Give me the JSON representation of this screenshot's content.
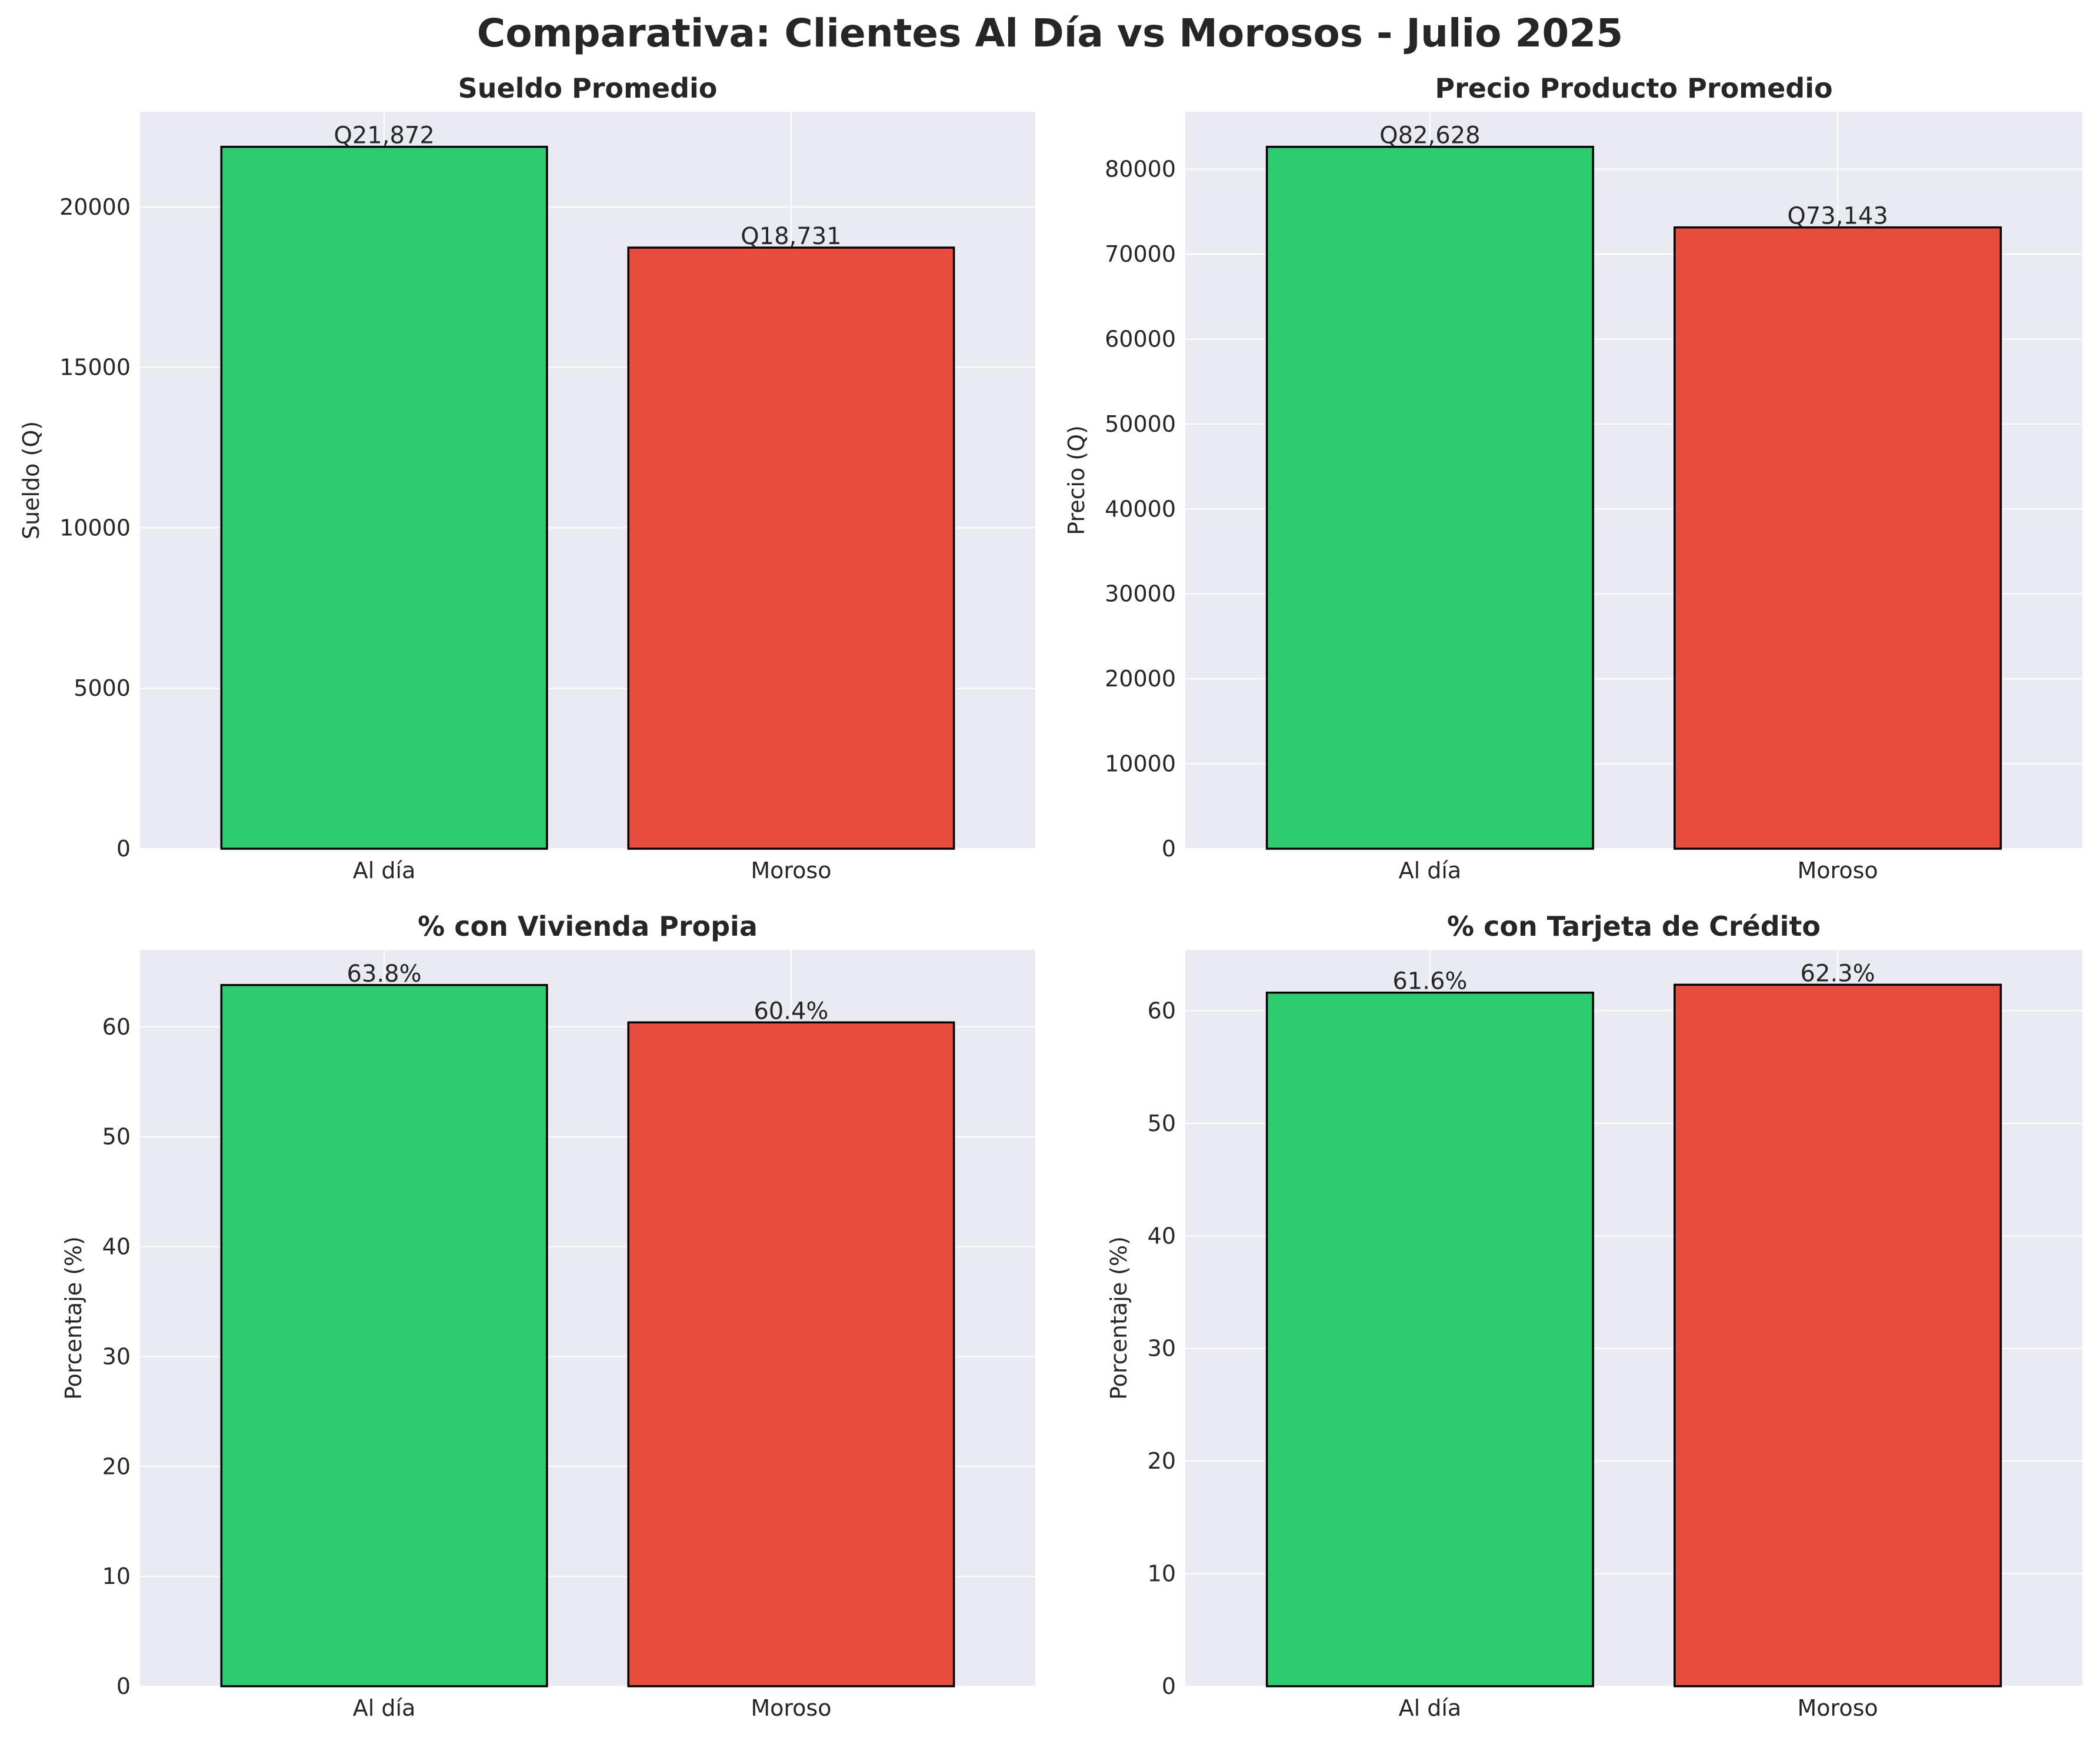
{
  "title": "Comparativa: Clientes Al Día vs Morosos - Julio 2025",
  "colors": {
    "al_dia": "#2ecc71",
    "moroso": "#e74c3c",
    "panel_bg": "#eaeaf2",
    "grid": "#ffffff",
    "edge": "#000000"
  },
  "chart_data": [
    {
      "type": "bar",
      "title": "Sueldo Promedio",
      "categories": [
        "Al día",
        "Moroso"
      ],
      "values": [
        21872,
        18731
      ],
      "value_labels": [
        "Q21,872",
        "Q18,731"
      ],
      "xlabel": "",
      "ylabel": "Sueldo (Q)",
      "ylim": [
        0,
        22965
      ],
      "yticks": [
        0,
        5000,
        10000,
        15000,
        20000
      ],
      "grid": true
    },
    {
      "type": "bar",
      "title": "Precio Producto Promedio",
      "categories": [
        "Al día",
        "Moroso"
      ],
      "values": [
        82628,
        73143
      ],
      "value_labels": [
        "Q82,628",
        "Q73,143"
      ],
      "xlabel": "",
      "ylabel": "Precio (Q)",
      "ylim": [
        0,
        86759
      ],
      "yticks": [
        0,
        10000,
        20000,
        30000,
        40000,
        50000,
        60000,
        70000,
        80000
      ],
      "grid": true
    },
    {
      "type": "bar",
      "title": "% con Vivienda Propia",
      "categories": [
        "Al día",
        "Moroso"
      ],
      "values": [
        63.8,
        60.4
      ],
      "value_labels": [
        "63.8%",
        "60.4%"
      ],
      "xlabel": "",
      "ylabel": "Porcentaje (%)",
      "ylim": [
        0,
        67
      ],
      "yticks": [
        0,
        10,
        20,
        30,
        40,
        50,
        60
      ],
      "grid": true
    },
    {
      "type": "bar",
      "title": "% con Tarjeta de Crédito",
      "categories": [
        "Al día",
        "Moroso"
      ],
      "values": [
        61.6,
        62.3
      ],
      "value_labels": [
        "61.6%",
        "62.3%"
      ],
      "xlabel": "",
      "ylabel": "Porcentaje (%)",
      "ylim": [
        0,
        65.4
      ],
      "yticks": [
        0,
        10,
        20,
        30,
        40,
        50,
        60
      ],
      "grid": true
    }
  ]
}
